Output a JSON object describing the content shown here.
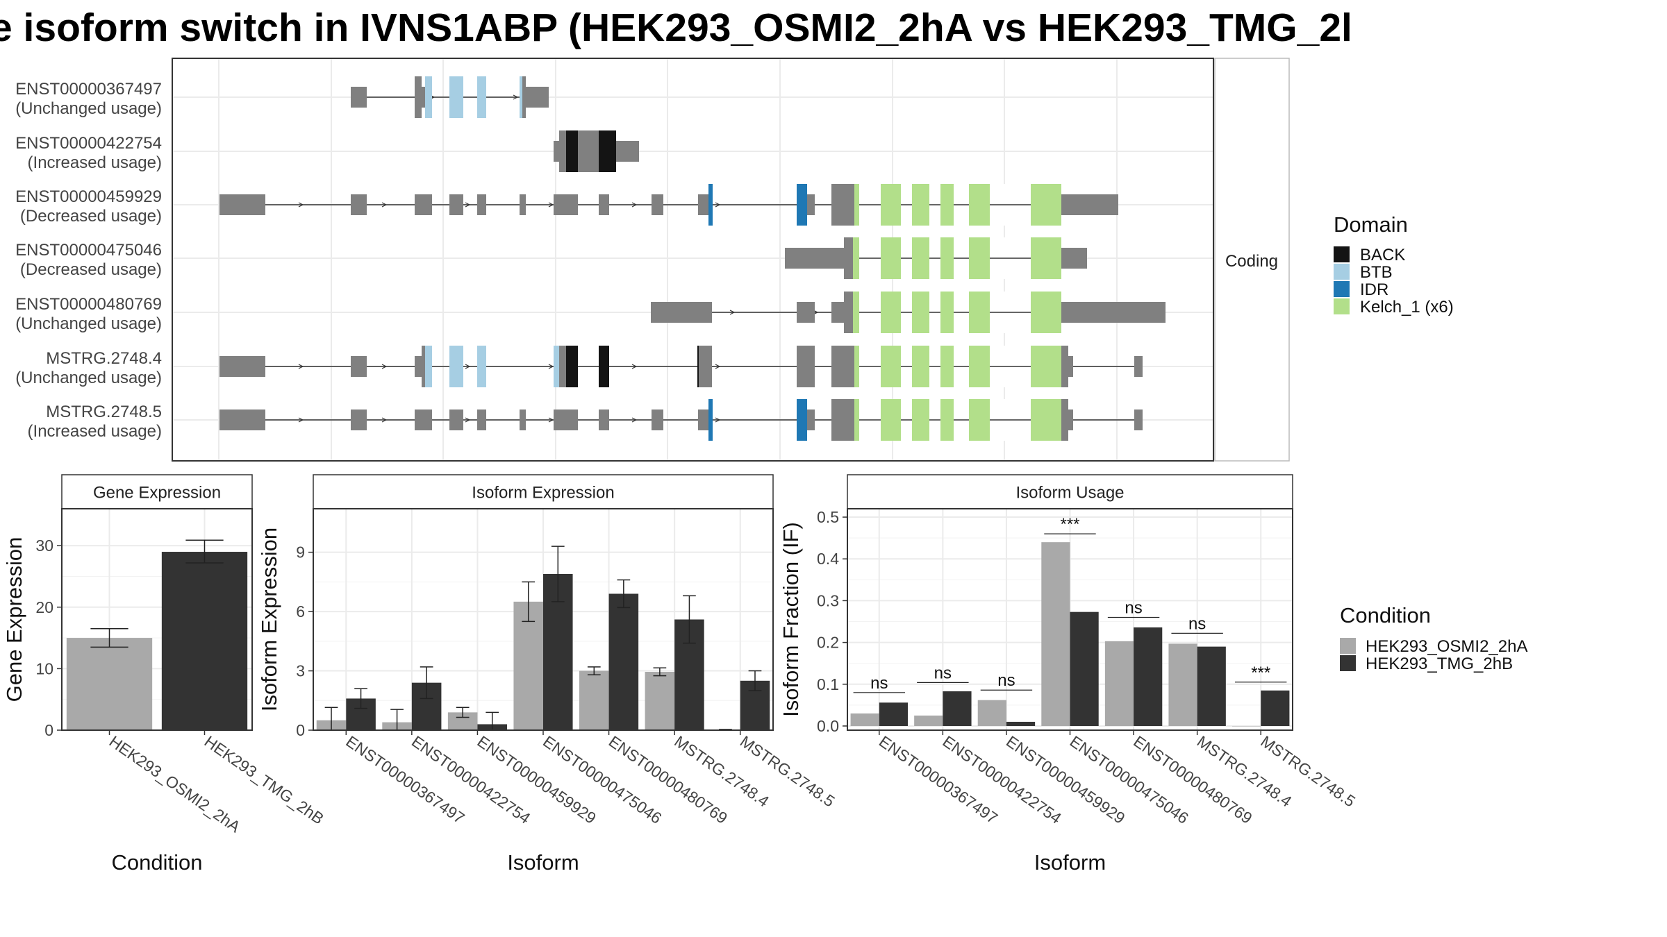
{
  "title": "e isoform switch in IVNS1ABP (HEK293_OSMI2_2hA vs HEK293_TMG_2l",
  "colors": {
    "exon": "#808080",
    "BACK": "#141414",
    "BTB": "#a6cee3",
    "IDR": "#1f78b4",
    "Kelch": "#b2df8a",
    "cond1": "#a9a9a9",
    "cond2": "#333333",
    "grid": "#ebebeb"
  },
  "structure": {
    "facet_label": "Coding",
    "isoforms": [
      {
        "id": "ENST00000367497",
        "usage": "(Unchanged usage)"
      },
      {
        "id": "ENST00000422754",
        "usage": "(Increased usage)"
      },
      {
        "id": "ENST00000459929",
        "usage": "(Decreased usage)"
      },
      {
        "id": "ENST00000475046",
        "usage": "(Decreased usage)"
      },
      {
        "id": "ENST00000480769",
        "usage": "(Unchanged usage)"
      },
      {
        "id": "MSTRG.2748.4",
        "usage": "(Unchanged usage)"
      },
      {
        "id": "MSTRG.2748.5",
        "usage": "(Increased usage)"
      }
    ]
  },
  "legends": {
    "domain": {
      "title": "Domain",
      "items": [
        "BACK",
        "BTB",
        "IDR",
        "Kelch_1 (x6)"
      ]
    },
    "condition": {
      "title": "Condition",
      "items": [
        "HEK293_OSMI2_2hA",
        "HEK293_TMG_2hB"
      ]
    }
  },
  "chart_data": [
    {
      "type": "bar",
      "panel": "Gene Expression",
      "xlabel": "Condition",
      "ylabel": "Gene Expression",
      "categories": [
        "HEK293_OSMI2_2hA",
        "HEK293_TMG_2hB"
      ],
      "values": [
        15.0,
        29.0
      ],
      "error": [
        [
          13.5,
          16.5
        ],
        [
          27.2,
          30.9
        ]
      ],
      "ylim": [
        0,
        36
      ],
      "yticks": [
        0,
        10,
        20,
        30
      ]
    },
    {
      "type": "bar",
      "panel": "Isoform Expression",
      "xlabel": "Isoform",
      "ylabel": "Isoform Expression",
      "categories": [
        "ENST00000367497",
        "ENST00000422754",
        "ENST00000459929",
        "ENST00000475046",
        "ENST00000480769",
        "MSTRG.2748.4",
        "MSTRG.2748.5"
      ],
      "series": [
        {
          "name": "HEK293_OSMI2_2hA",
          "values": [
            0.5,
            0.4,
            0.9,
            6.5,
            3.0,
            2.95,
            0.02
          ],
          "error": [
            [
              0.0,
              1.15
            ],
            [
              0.0,
              1.05
            ],
            [
              0.65,
              1.15
            ],
            [
              5.5,
              7.5
            ],
            [
              2.8,
              3.2
            ],
            [
              2.75,
              3.15
            ],
            [
              0.0,
              0.04
            ]
          ]
        },
        {
          "name": "HEK293_TMG_2hB",
          "values": [
            1.6,
            2.4,
            0.3,
            7.9,
            6.9,
            5.6,
            2.5
          ],
          "error": [
            [
              1.1,
              2.1
            ],
            [
              1.6,
              3.2
            ],
            [
              0.0,
              0.9
            ],
            [
              6.5,
              9.3
            ],
            [
              6.2,
              7.6
            ],
            [
              4.4,
              6.8
            ],
            [
              2.0,
              3.0
            ]
          ]
        }
      ],
      "ylim": [
        0,
        11.2
      ],
      "yticks": [
        0,
        3,
        6,
        9
      ]
    },
    {
      "type": "bar",
      "panel": "Isoform Usage",
      "xlabel": "Isoform",
      "ylabel": "Isoform Fraction (IF)",
      "categories": [
        "ENST00000367497",
        "ENST00000422754",
        "ENST00000459929",
        "ENST00000475046",
        "ENST00000480769",
        "MSTRG.2748.4",
        "MSTRG.2748.5"
      ],
      "series": [
        {
          "name": "HEK293_OSMI2_2hA",
          "values": [
            0.03,
            0.025,
            0.062,
            0.44,
            0.203,
            0.197,
            0.0
          ]
        },
        {
          "name": "HEK293_TMG_2hB",
          "values": [
            0.056,
            0.083,
            0.01,
            0.273,
            0.236,
            0.19,
            0.085
          ]
        }
      ],
      "significance": [
        "ns",
        "ns",
        "ns",
        "***",
        "ns",
        "ns",
        "***"
      ],
      "sig_level": [
        0.08,
        0.104,
        0.086,
        0.46,
        0.26,
        0.222,
        0.105
      ],
      "ylim": [
        -0.01,
        0.52
      ],
      "yticks": [
        "0.0",
        "0.1",
        "0.2",
        "0.3",
        "0.4",
        "0.5"
      ]
    }
  ]
}
